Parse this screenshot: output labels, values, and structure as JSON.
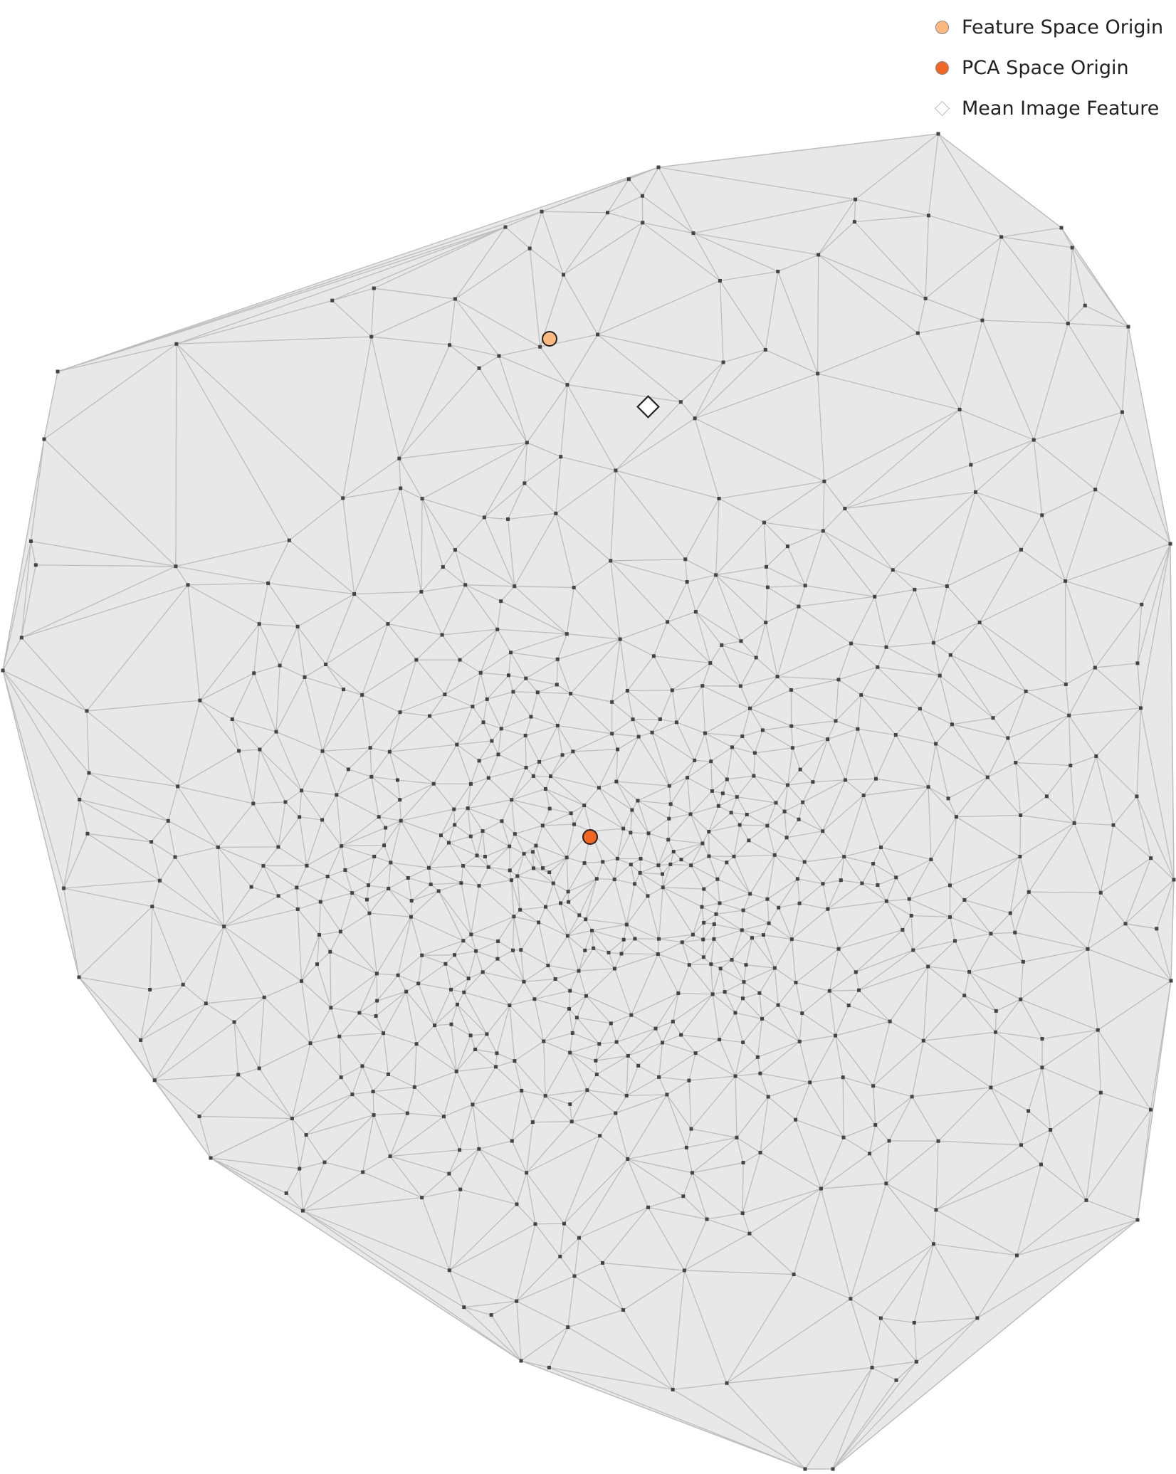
{
  "legend": {
    "items": [
      {
        "label": "Feature Space Origin",
        "color": "#fdb97d",
        "marker": "circle"
      },
      {
        "label": "PCA Space Origin",
        "color": "#f26522",
        "marker": "circle"
      },
      {
        "label": "Mean Image Feature",
        "color": "#ffffff",
        "marker": "diamond"
      }
    ]
  },
  "colors": {
    "hull_fill": "#e8e8e8",
    "edge": "#bdbdbd",
    "point": "#444444"
  }
}
